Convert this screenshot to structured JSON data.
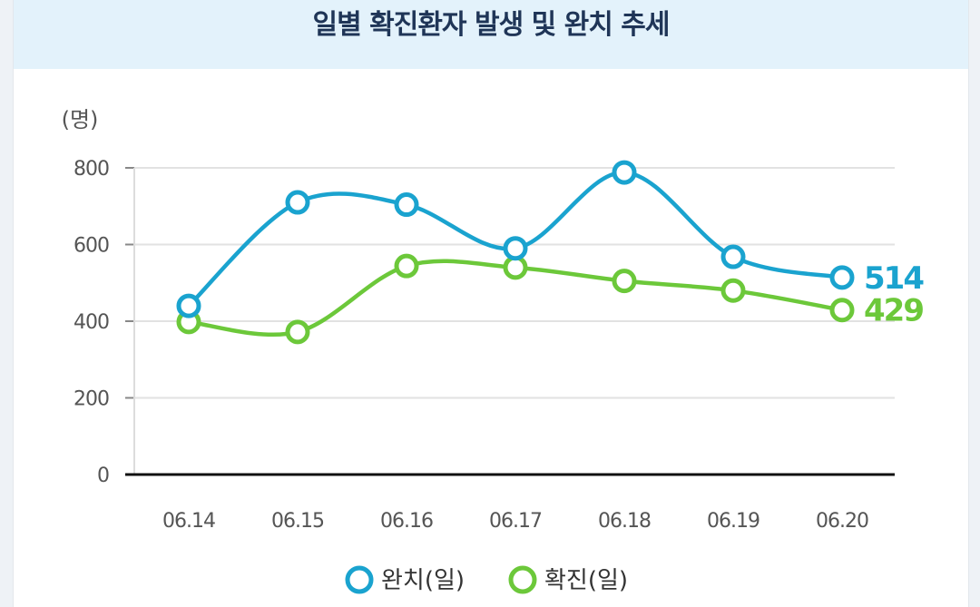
{
  "chart_data": {
    "type": "line",
    "title": "일별 확진환자 발생 및 완치 추세",
    "unit_label": "(명)",
    "categories": [
      "06.14",
      "06.15",
      "06.16",
      "06.17",
      "06.18",
      "06.19",
      "06.20"
    ],
    "y_ticks": [
      0,
      200,
      400,
      600,
      800
    ],
    "ylim": [
      0,
      800
    ],
    "grid": true,
    "series": [
      {
        "name": "완치(일)",
        "color": "#1aa3cf",
        "values": [
          440,
          710,
          704,
          590,
          788,
          568,
          514
        ],
        "end_label": "514"
      },
      {
        "name": "확진(일)",
        "color": "#6cc83a",
        "values": [
          398,
          372,
          544,
          540,
          505,
          480,
          429
        ],
        "end_label": "429"
      }
    ],
    "legend_position": "bottom-center"
  }
}
